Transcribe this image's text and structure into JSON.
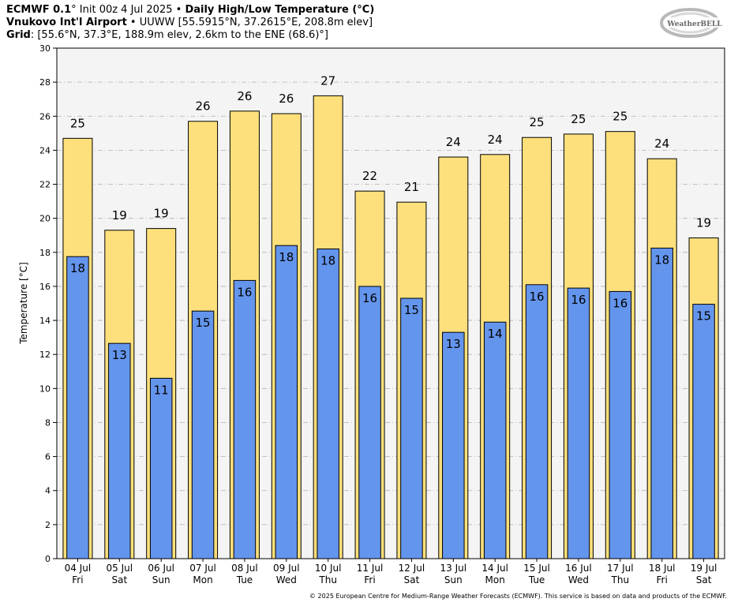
{
  "header": {
    "model": "ECMWF 0.1",
    "init": "° Init 00z 4 Jul 2025 • ",
    "product": "Daily High/Low Temperature (°C)",
    "station_name": "Vnukovo Int'l Airport",
    "station_info": " • UUWW [55.5915°N, 37.2615°E, 208.8m elev]",
    "grid_label": "Grid",
    "grid_info": ": [55.6°N, 37.3°E, 188.9m elev, 2.6km to the ENE (68.6)°]"
  },
  "logo": {
    "text": "WeatherBELL",
    "icon": "weatherbell-logo"
  },
  "footer": "© 2025 European Centre for Medium-Range Weather Forecasts (ECMWF). This service is based on data and products of the ECMWF.",
  "chart_data": {
    "type": "bar",
    "title": "Daily High/Low Temperature (°C)",
    "ylabel": "Temperature [°C]",
    "ylim": [
      0,
      30
    ],
    "yticks": [
      0,
      2,
      4,
      6,
      8,
      10,
      12,
      14,
      16,
      18,
      20,
      22,
      24,
      26,
      28,
      30
    ],
    "grid": true,
    "categories": [
      "04 Jul",
      "05 Jul",
      "06 Jul",
      "07 Jul",
      "08 Jul",
      "09 Jul",
      "10 Jul",
      "11 Jul",
      "12 Jul",
      "13 Jul",
      "14 Jul",
      "15 Jul",
      "16 Jul",
      "17 Jul",
      "18 Jul",
      "19 Jul"
    ],
    "weekdays": [
      "Fri",
      "Sat",
      "Sun",
      "Mon",
      "Tue",
      "Wed",
      "Thu",
      "Fri",
      "Sat",
      "Sun",
      "Mon",
      "Tue",
      "Wed",
      "Thu",
      "Fri",
      "Sat"
    ],
    "series": [
      {
        "role": "high",
        "color": "#fde07c",
        "values": [
          24.7,
          19.3,
          19.4,
          25.7,
          26.3,
          26.15,
          27.2,
          21.6,
          20.95,
          23.6,
          23.75,
          24.75,
          24.95,
          25.1,
          23.5,
          18.85
        ],
        "labels": [
          "25",
          "19",
          "19",
          "26",
          "26",
          "26",
          "27",
          "22",
          "21",
          "24",
          "24",
          "25",
          "25",
          "25",
          "24",
          "19"
        ]
      },
      {
        "role": "low",
        "color": "#6495ed",
        "values": [
          17.75,
          12.65,
          10.6,
          14.55,
          16.35,
          18.4,
          18.2,
          16.0,
          15.3,
          13.3,
          13.9,
          16.1,
          15.9,
          15.7,
          18.25,
          14.95
        ],
        "labels": [
          "18",
          "13",
          "11",
          "15",
          "16",
          "18",
          "18",
          "16",
          "15",
          "13",
          "14",
          "16",
          "16",
          "16",
          "18",
          "15"
        ]
      }
    ]
  }
}
